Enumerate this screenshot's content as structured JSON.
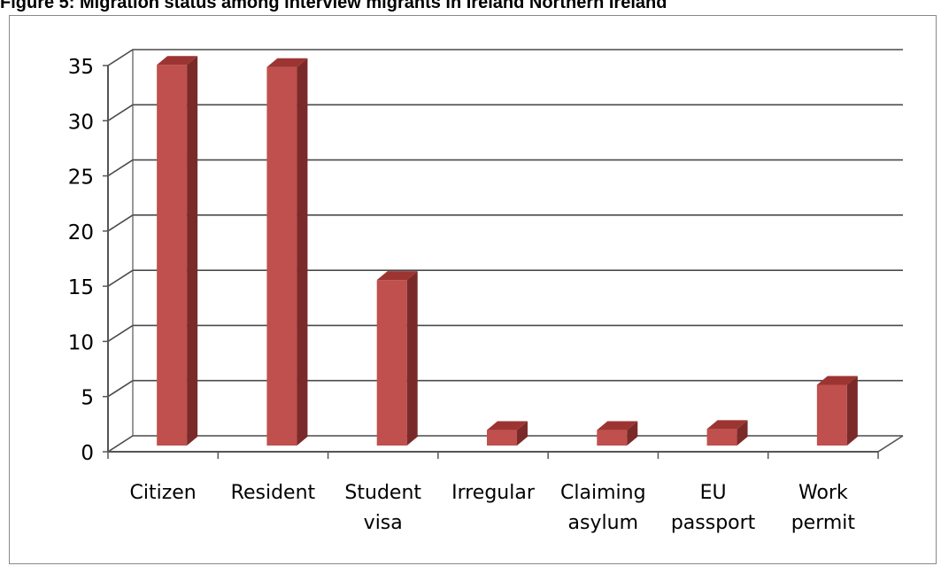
{
  "title": "Figure 5: Migration status among interview migrants in Ireland Northern Ireland",
  "chart_data": {
    "type": "bar",
    "style": "3d-column",
    "categories": [
      [
        "Citizen"
      ],
      [
        "Resident"
      ],
      [
        "Student",
        "visa"
      ],
      [
        "Irregular"
      ],
      [
        "Claiming",
        "asylum"
      ],
      [
        "EU",
        "passport"
      ],
      [
        "Work",
        "permit"
      ]
    ],
    "values": [
      34.5,
      34.3,
      15.0,
      1.4,
      1.4,
      1.5,
      5.5
    ],
    "ylim": [
      0,
      35
    ],
    "yticks": [
      0,
      5,
      10,
      15,
      20,
      25,
      30,
      35
    ],
    "grid": true,
    "legend": "none",
    "xlabel": "",
    "ylabel": "",
    "colors": {
      "bar_front": "#c0504d",
      "bar_side": "#7a2b29",
      "bar_top": "#9c3532",
      "grid": "#4a4a4a",
      "axis": "#555555"
    }
  }
}
